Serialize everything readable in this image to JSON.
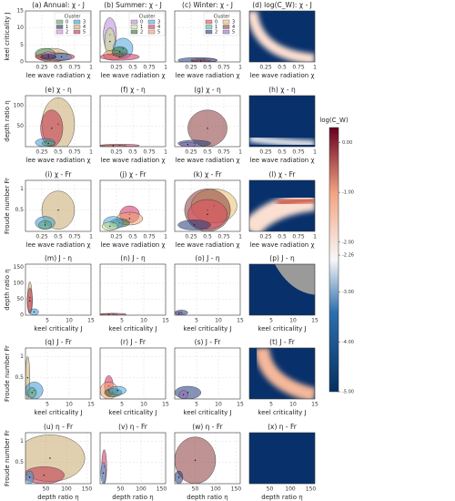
{
  "chart_data": [
    {
      "type": "ellipse",
      "title": "(a) Annual: χ - J",
      "xlabel": "lee wave radiation χ",
      "ylabel": "keel criticality J",
      "xlim": [
        0,
        1
      ],
      "xticks": [
        0.25,
        0.5,
        0.75,
        1
      ],
      "ylim": [
        0,
        15
      ],
      "yticks": [
        0,
        5,
        10,
        15
      ],
      "legend": {
        "title": "Cluster",
        "entries": [
          {
            "name": "0",
            "color": "#5aa469"
          },
          {
            "name": "1",
            "color": "#1f2a5a"
          },
          {
            "name": "2",
            "color": "#d98ce0"
          },
          {
            "name": "3",
            "color": "#3a9ad9"
          },
          {
            "name": "4",
            "color": "#c8a96e"
          },
          {
            "name": "5",
            "color": "#c0304a"
          }
        ]
      },
      "ellipses": [
        {
          "color": "#c8a96e",
          "x": 0.4,
          "y": 2,
          "rx": 0.25,
          "ry": 2
        },
        {
          "color": "#5aa469",
          "x": 0.3,
          "y": 2.5,
          "rx": 0.15,
          "ry": 1.5
        },
        {
          "color": "#c0304a",
          "x": 0.45,
          "y": 1.5,
          "rx": 0.3,
          "ry": 1.2
        },
        {
          "color": "#3a9ad9",
          "x": 0.55,
          "y": 1.5,
          "rx": 0.15,
          "ry": 1
        },
        {
          "color": "#d98ce0",
          "x": 0.35,
          "y": 2,
          "rx": 0.1,
          "ry": 1
        },
        {
          "color": "#1f2a5a",
          "x": 0.35,
          "y": 1.5,
          "rx": 0.12,
          "ry": 0.8
        }
      ]
    },
    {
      "type": "ellipse",
      "title": "(b) Summer: χ - J",
      "xlabel": "lee wave radiation χ",
      "xlim": [
        0,
        1
      ],
      "xticks": [
        0.25,
        0.5,
        0.75,
        1
      ],
      "ylim": [
        0,
        15
      ],
      "yticks": [
        0,
        5,
        10,
        15
      ],
      "legend": {
        "title": "Cluster",
        "entries": [
          {
            "name": "0",
            "color": "#b98ad9"
          },
          {
            "name": "1",
            "color": "#c8e08a"
          },
          {
            "name": "2",
            "color": "#2e6e3e"
          },
          {
            "name": "3",
            "color": "#4aa8e0"
          },
          {
            "name": "4",
            "color": "#d03060"
          },
          {
            "name": "5",
            "color": "#f0a070"
          }
        ]
      },
      "ellipses": [
        {
          "color": "#b98ad9",
          "x": 0.15,
          "y": 8,
          "rx": 0.1,
          "ry": 5
        },
        {
          "color": "#c8e08a",
          "x": 0.15,
          "y": 6,
          "rx": 0.08,
          "ry": 4
        },
        {
          "color": "#4aa8e0",
          "x": 0.35,
          "y": 4,
          "rx": 0.15,
          "ry": 3
        },
        {
          "color": "#f0a070",
          "x": 0.2,
          "y": 2,
          "rx": 0.15,
          "ry": 1.5
        },
        {
          "color": "#d03060",
          "x": 0.3,
          "y": 1.5,
          "rx": 0.3,
          "ry": 1
        },
        {
          "color": "#2e6e3e",
          "x": 0.3,
          "y": 3,
          "rx": 0.12,
          "ry": 1.5
        }
      ]
    },
    {
      "type": "ellipse",
      "title": "(c) Winter: χ - J",
      "xlabel": "lee wave radiation χ",
      "xlim": [
        0,
        1
      ],
      "xticks": [
        0.25,
        0.5,
        0.75,
        1
      ],
      "ylim": [
        0,
        15
      ],
      "yticks": [
        0,
        5,
        10,
        15
      ],
      "legend": {
        "title": "Cluster",
        "entries": [
          {
            "name": "0",
            "color": "#e04a5a"
          },
          {
            "name": "1",
            "color": "#4ab89a"
          },
          {
            "name": "2",
            "color": "#1f3a7a"
          },
          {
            "name": "3",
            "color": "#e8c070"
          },
          {
            "name": "4",
            "color": "#8a3a3a"
          },
          {
            "name": "5",
            "color": "#9a6ac0"
          }
        ]
      },
      "ellipses": [
        {
          "color": "#1f3a7a",
          "x": 0.35,
          "y": 0.5,
          "rx": 0.3,
          "ry": 0.8
        },
        {
          "color": "#9a6ac0",
          "x": 0.45,
          "y": 0.5,
          "rx": 0.2,
          "ry": 0.5
        },
        {
          "color": "#8a3a3a",
          "x": 0.4,
          "y": 0.3,
          "rx": 0.15,
          "ry": 0.3
        }
      ]
    },
    {
      "type": "heatmap",
      "title": "(d) log(C_W): χ - J",
      "xlabel": "lee wave radiation χ",
      "xlim": [
        0,
        1
      ],
      "xticks": [
        0.25,
        0.5,
        0.75,
        1
      ]
    },
    {
      "type": "ellipse",
      "title": "(e) χ - η",
      "xlabel": "lee wave radiation χ",
      "ylabel": "depth ratio η",
      "xlim": [
        0,
        1
      ],
      "xticks": [
        0.25,
        0.5,
        0.75,
        1
      ],
      "ylim": [
        0,
        125
      ],
      "yticks": [
        50,
        100
      ],
      "ellipses": [
        {
          "color": "#c8a96e",
          "x": 0.5,
          "y": 55,
          "rx": 0.25,
          "ry": 65
        },
        {
          "color": "#c0304a",
          "x": 0.4,
          "y": 45,
          "rx": 0.17,
          "ry": 45
        },
        {
          "color": "#3a9ad9",
          "x": 0.3,
          "y": 10,
          "rx": 0.15,
          "ry": 10
        },
        {
          "color": "#5aa469",
          "x": 0.35,
          "y": 8,
          "rx": 0.1,
          "ry": 6
        }
      ]
    },
    {
      "type": "ellipse",
      "title": "(f) χ - η",
      "xlabel": "lee wave radiation χ",
      "xlim": [
        0,
        1
      ],
      "xticks": [
        0.25,
        0.5,
        0.75,
        1
      ],
      "ylim": [
        0,
        125
      ],
      "yticks": [
        50,
        100
      ],
      "ellipses": [
        {
          "color": "#d03060",
          "x": 0.3,
          "y": 3,
          "rx": 0.3,
          "ry": 3
        },
        {
          "color": "#f0a070",
          "x": 0.2,
          "y": 2,
          "rx": 0.2,
          "ry": 2
        }
      ]
    },
    {
      "type": "ellipse",
      "title": "(g) χ - η",
      "xlabel": "lee wave radiation χ",
      "xlim": [
        0,
        1
      ],
      "xticks": [
        0.25,
        0.5,
        0.75,
        1
      ],
      "ylim": [
        0,
        125
      ],
      "yticks": [
        50,
        100
      ],
      "ellipses": [
        {
          "color": "#8a3a3a",
          "x": 0.5,
          "y": 45,
          "rx": 0.3,
          "ry": 45
        },
        {
          "color": "#1f3a7a",
          "x": 0.3,
          "y": 8,
          "rx": 0.25,
          "ry": 8
        },
        {
          "color": "#9a6ac0",
          "x": 0.2,
          "y": 5,
          "rx": 0.12,
          "ry": 6
        }
      ]
    },
    {
      "type": "heatmap",
      "title": "(h) χ - η",
      "xlabel": "lee wave radiation χ",
      "xlim": [
        0,
        1
      ],
      "xticks": [
        0.25,
        0.5,
        0.75,
        1
      ]
    },
    {
      "type": "ellipse",
      "title": "(i) χ - Fr",
      "xlabel": "lee wave radiation χ",
      "ylabel": "Froude number Fr",
      "xlim": [
        0,
        1
      ],
      "xticks": [
        0.25,
        0.5,
        0.75,
        1
      ],
      "ylim": [
        0,
        1.2
      ],
      "yticks": [
        0.5,
        1
      ],
      "ellipses": [
        {
          "color": "#c8a96e",
          "x": 0.5,
          "y": 0.5,
          "rx": 0.25,
          "ry": 0.45
        },
        {
          "color": "#3a9ad9",
          "x": 0.3,
          "y": 0.2,
          "rx": 0.15,
          "ry": 0.15
        },
        {
          "color": "#5aa469",
          "x": 0.3,
          "y": 0.15,
          "rx": 0.1,
          "ry": 0.1
        }
      ]
    },
    {
      "type": "ellipse",
      "title": "(j) χ - Fr",
      "xlabel": "lee wave radiation χ",
      "xlim": [
        0,
        1
      ],
      "xticks": [
        0.25,
        0.5,
        0.75,
        1
      ],
      "ylim": [
        0,
        1.2
      ],
      "yticks": [
        0.5,
        1
      ],
      "ellipses": [
        {
          "color": "#d03060",
          "x": 0.45,
          "y": 0.4,
          "rx": 0.15,
          "ry": 0.2
        },
        {
          "color": "#f0a070",
          "x": 0.45,
          "y": 0.3,
          "rx": 0.2,
          "ry": 0.15
        },
        {
          "color": "#2e6e3e",
          "x": 0.3,
          "y": 0.2,
          "rx": 0.15,
          "ry": 0.1
        },
        {
          "color": "#4aa8e0",
          "x": 0.2,
          "y": 0.2,
          "rx": 0.15,
          "ry": 0.15
        },
        {
          "color": "#c8e08a",
          "x": 0.15,
          "y": 0.12,
          "rx": 0.12,
          "ry": 0.1
        }
      ]
    },
    {
      "type": "ellipse",
      "title": "(k) χ - Fr",
      "xlabel": "lee wave radiation χ",
      "xlim": [
        0,
        1
      ],
      "xticks": [
        0.25,
        0.5,
        0.75,
        1
      ],
      "ylim": [
        0,
        1.2
      ],
      "yticks": [
        0.5,
        1
      ],
      "ellipses": [
        {
          "color": "#e8c070",
          "x": 0.6,
          "y": 0.6,
          "rx": 0.35,
          "ry": 0.4
        },
        {
          "color": "#8a3a3a",
          "x": 0.5,
          "y": 0.5,
          "rx": 0.35,
          "ry": 0.5
        },
        {
          "color": "#e04a5a",
          "x": 0.5,
          "y": 0.4,
          "rx": 0.3,
          "ry": 0.35
        },
        {
          "color": "#1f3a7a",
          "x": 0.3,
          "y": 0.15,
          "rx": 0.25,
          "ry": 0.12
        }
      ]
    },
    {
      "type": "heatmap",
      "title": "(l) χ - Fr",
      "xlabel": "lee wave radiation χ",
      "xlim": [
        0,
        1
      ],
      "xticks": [
        0.25,
        0.5,
        0.75,
        1
      ]
    },
    {
      "type": "ellipse",
      "title": "(m) J - η",
      "xlabel": "keel criticality J",
      "ylabel": "depth ratio η",
      "xlim": [
        0,
        15
      ],
      "xticks": [
        5,
        10,
        15
      ],
      "ylim": [
        0,
        160
      ],
      "yticks": [
        0,
        50,
        100,
        150
      ],
      "ellipses": [
        {
          "color": "#c8a96e",
          "x": 1,
          "y": 55,
          "rx": 0.5,
          "ry": 50
        },
        {
          "color": "#c0304a",
          "x": 1,
          "y": 45,
          "rx": 0.6,
          "ry": 40
        },
        {
          "color": "#3a9ad9",
          "x": 2,
          "y": 10,
          "rx": 1,
          "ry": 10
        }
      ]
    },
    {
      "type": "ellipse",
      "title": "(n) J - η",
      "xlabel": "keel criticality J",
      "xlim": [
        0,
        15
      ],
      "xticks": [
        5,
        10,
        15
      ],
      "ylim": [
        0,
        160
      ],
      "yticks": [
        0,
        50,
        100,
        150
      ],
      "ellipses": [
        {
          "color": "#d03060",
          "x": 3,
          "y": 3,
          "rx": 3,
          "ry": 3
        },
        {
          "color": "#f0a070",
          "x": 2,
          "y": 2,
          "rx": 2,
          "ry": 2
        }
      ]
    },
    {
      "type": "ellipse",
      "title": "(o) J - η",
      "xlabel": "keel criticality J",
      "xlim": [
        0,
        15
      ],
      "xticks": [
        5,
        10,
        15
      ],
      "ylim": [
        0,
        160
      ],
      "yticks": [
        0,
        50,
        100,
        150
      ],
      "ellipses": [
        {
          "color": "#1f3a7a",
          "x": 1.5,
          "y": 8,
          "rx": 1.5,
          "ry": 8
        },
        {
          "color": "#9a6ac0",
          "x": 1,
          "y": 5,
          "rx": 0.8,
          "ry": 5
        }
      ]
    },
    {
      "type": "heatmap",
      "title": "(p) J - η",
      "xlabel": "keel criticality J",
      "xlim": [
        0,
        15
      ],
      "xticks": [
        5,
        10,
        15
      ]
    },
    {
      "type": "ellipse",
      "title": "(q) J - Fr",
      "xlabel": "keel criticality J",
      "ylabel": "Froude number Fr",
      "xlim": [
        0,
        15
      ],
      "xticks": [
        5,
        10,
        15
      ],
      "ylim": [
        0,
        1.2
      ],
      "yticks": [
        0.5,
        1
      ],
      "ellipses": [
        {
          "color": "#c8a96e",
          "x": 0.5,
          "y": 0.5,
          "rx": 0.5,
          "ry": 0.5
        },
        {
          "color": "#3a9ad9",
          "x": 2,
          "y": 0.2,
          "rx": 2,
          "ry": 0.2
        },
        {
          "color": "#5aa469",
          "x": 1.5,
          "y": 0.15,
          "rx": 1,
          "ry": 0.12
        }
      ]
    },
    {
      "type": "ellipse",
      "title": "(r) J - Fr",
      "xlabel": "keel criticality J",
      "xlim": [
        0,
        15
      ],
      "xticks": [
        5,
        10,
        15
      ],
      "ylim": [
        0,
        1.2
      ],
      "yticks": [
        0.5,
        1
      ],
      "ellipses": [
        {
          "color": "#d03060",
          "x": 2,
          "y": 0.3,
          "rx": 1,
          "ry": 0.25
        },
        {
          "color": "#f0a070",
          "x": 2,
          "y": 0.2,
          "rx": 2,
          "ry": 0.2
        },
        {
          "color": "#2e6e3e",
          "x": 3,
          "y": 0.15,
          "rx": 2,
          "ry": 0.1
        },
        {
          "color": "#4aa8e0",
          "x": 4,
          "y": 0.2,
          "rx": 2,
          "ry": 0.1
        }
      ]
    },
    {
      "type": "ellipse",
      "title": "(s) J - Fr",
      "xlabel": "keel criticality J",
      "xlim": [
        0,
        15
      ],
      "xticks": [
        5,
        10,
        15
      ],
      "ylim": [
        0,
        1.2
      ],
      "yticks": [
        0.5,
        1
      ],
      "ellipses": [
        {
          "color": "#1f3a7a",
          "x": 3,
          "y": 0.15,
          "rx": 3,
          "ry": 0.15
        },
        {
          "color": "#9a6ac0",
          "x": 2,
          "y": 0.1,
          "rx": 1,
          "ry": 0.1
        }
      ]
    },
    {
      "type": "heatmap",
      "title": "(t) J - Fr",
      "xlabel": "keel criticality J",
      "xlim": [
        0,
        15
      ],
      "xticks": [
        5,
        10,
        15
      ]
    },
    {
      "type": "ellipse",
      "title": "(u) η - Fr",
      "xlabel": "depth ratio η",
      "ylabel": "Froude number Fr",
      "xlim": [
        0,
        160
      ],
      "xticks": [
        50,
        100,
        150
      ],
      "ylim": [
        0,
        1.2
      ],
      "yticks": [
        0.5,
        1
      ],
      "ellipses": [
        {
          "color": "#c8a96e",
          "x": 60,
          "y": 0.6,
          "rx": 85,
          "ry": 0.55
        },
        {
          "color": "#c0304a",
          "x": 45,
          "y": 0.2,
          "rx": 50,
          "ry": 0.2
        },
        {
          "color": "#3a9ad9",
          "x": 10,
          "y": 0.15,
          "rx": 10,
          "ry": 0.15
        }
      ]
    },
    {
      "type": "ellipse",
      "title": "(v) η - Fr",
      "xlabel": "depth ratio η",
      "xlim": [
        0,
        160
      ],
      "xticks": [
        50,
        100,
        150
      ],
      "ylim": [
        0,
        1.2
      ],
      "yticks": [
        0.5,
        1
      ],
      "ellipses": [
        {
          "color": "#d03060",
          "x": 10,
          "y": 0.4,
          "rx": 6,
          "ry": 0.4
        },
        {
          "color": "#4aa8e0",
          "x": 8,
          "y": 0.25,
          "rx": 6,
          "ry": 0.25
        }
      ]
    },
    {
      "type": "ellipse",
      "title": "(w) η - Fr",
      "xlabel": "depth ratio η",
      "xlim": [
        0,
        160
      ],
      "xticks": [
        50,
        100,
        150
      ],
      "ylim": [
        0,
        1.2
      ],
      "yticks": [
        0.5,
        1
      ],
      "ellipses": [
        {
          "color": "#8a3a3a",
          "x": 50,
          "y": 0.55,
          "rx": 50,
          "ry": 0.55
        },
        {
          "color": "#1f3a7a",
          "x": 10,
          "y": 0.15,
          "rx": 10,
          "ry": 0.15
        }
      ]
    },
    {
      "type": "heatmap",
      "title": "(x) η - Fr",
      "xlabel": "depth ratio η",
      "xlim": [
        0,
        160
      ],
      "xticks": [
        50,
        100,
        150
      ]
    },
    {
      "type": "colorbar",
      "label": "log(C_W)",
      "clim": [
        -5,
        0.3
      ],
      "ticks": [
        {
          "value": 0,
          "label": "0.00"
        },
        {
          "value": -1,
          "label": "-1.00"
        },
        {
          "value": -2,
          "label": "-2.00"
        },
        {
          "value": -2.26,
          "label": "-2.26"
        },
        {
          "value": -3,
          "label": "-3.00"
        },
        {
          "value": -4,
          "label": "-4.00"
        },
        {
          "value": -5,
          "label": "-5.00"
        }
      ]
    }
  ]
}
